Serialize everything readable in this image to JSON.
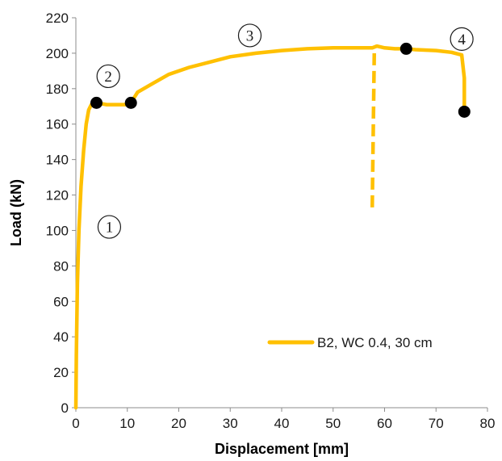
{
  "chart_data": {
    "type": "line",
    "title": "",
    "xlabel": "Displacement [mm]",
    "ylabel": "Load (kN)",
    "xlim": [
      0,
      80
    ],
    "ylim": [
      0,
      220
    ],
    "x_ticks": [
      0,
      10,
      20,
      30,
      40,
      50,
      60,
      70,
      80
    ],
    "y_ticks": [
      0,
      20,
      40,
      60,
      80,
      100,
      120,
      140,
      160,
      180,
      200,
      220
    ],
    "grid": false,
    "legend_position": "bottom-right",
    "line_color": "#FFC000",
    "marker_color": "#000000",
    "series": [
      {
        "name": "B2, WC 0.4, 30 cm",
        "x": [
          0,
          0.1,
          0.3,
          0.6,
          1.0,
          1.5,
          2.0,
          2.5,
          3.0,
          3.5,
          4.0,
          6.0,
          8.0,
          10.0,
          10.7,
          12,
          15,
          18,
          22,
          26,
          30,
          35,
          40,
          45,
          50,
          55,
          57.6,
          58.5,
          60,
          62,
          64.2,
          66,
          70,
          73,
          75,
          75.5,
          75.5
        ],
        "y": [
          0,
          30,
          70,
          100,
          125,
          145,
          160,
          168,
          171,
          172,
          172,
          171,
          171,
          171,
          172,
          178,
          183,
          188,
          192,
          195,
          198,
          200,
          201.5,
          202.5,
          203,
          203,
          203,
          204,
          203,
          202.5,
          202.5,
          202,
          201.5,
          200.5,
          199,
          186,
          167
        ]
      }
    ],
    "dashed_segment": {
      "x": [
        58,
        57.6
      ],
      "y": [
        200,
        112
      ]
    },
    "markers": [
      {
        "x": 4.0,
        "y": 172
      },
      {
        "x": 10.7,
        "y": 172
      },
      {
        "x": 64.2,
        "y": 202.5
      },
      {
        "x": 75.5,
        "y": 167
      }
    ],
    "phase_labels": [
      {
        "text": "1",
        "x": 6.5,
        "y": 102
      },
      {
        "text": "2",
        "x": 6.3,
        "y": 187
      },
      {
        "text": "3",
        "x": 33.8,
        "y": 210
      },
      {
        "text": "4",
        "x": 75.0,
        "y": 208
      }
    ]
  }
}
